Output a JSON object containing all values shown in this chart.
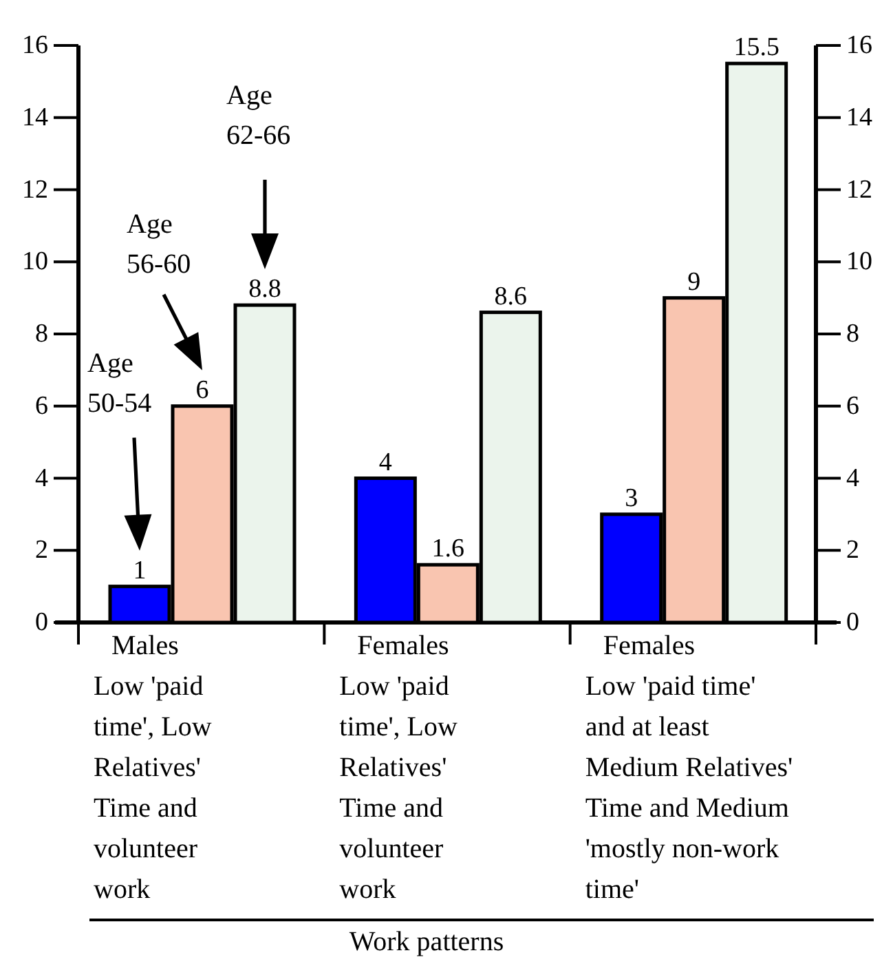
{
  "chart_data": {
    "type": "bar",
    "xlabel": "Work patterns",
    "categories": [
      "Males\nLow 'paid\ntime',  Low\nRelatives'\nTime and\nvolunteer\nwork",
      "Females\nLow 'paid\ntime',  Low\nRelatives'\nTime and\nvolunteer\nwork",
      "Females\nLow 'paid time'\nand at least\nMedium Relatives'\nTime and Medium\n'mostly non-work\ntime'"
    ],
    "series": [
      {
        "color": "#0000ff",
        "values": [
          1,
          4,
          3
        ]
      },
      {
        "color": "#f9c5b0",
        "values": [
          6,
          1.6,
          9
        ]
      },
      {
        "color": "#ebf4ec",
        "values": [
          8.8,
          8.6,
          15.5
        ]
      }
    ],
    "annotations": [
      "Age\n50-54",
      "Age\n56-60",
      "Age\n62-66"
    ],
    "data_labels": true,
    "ylim": [
      0,
      16
    ],
    "yticks": [
      0,
      2,
      4,
      6,
      8,
      10,
      12,
      14,
      16
    ],
    "y2lim": [
      0,
      16
    ],
    "y2ticks": [
      0,
      2,
      4,
      6,
      8,
      10,
      12,
      14,
      16
    ],
    "grid": false
  }
}
